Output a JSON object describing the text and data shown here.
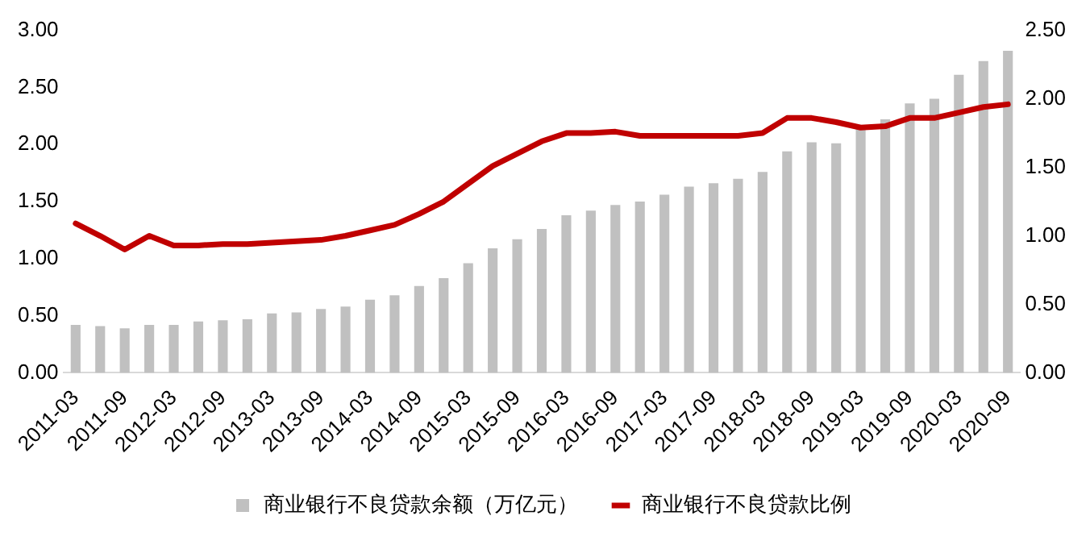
{
  "chart_data": {
    "type": "bar",
    "categories": [
      "2011-03",
      null,
      "2011-09",
      null,
      "2012-03",
      null,
      "2012-09",
      null,
      "2013-03",
      null,
      "2013-09",
      null,
      "2014-03",
      null,
      "2014-09",
      null,
      "2015-03",
      null,
      "2015-09",
      null,
      "2016-03",
      null,
      "2016-09",
      null,
      "2017-03",
      null,
      "2017-09",
      null,
      "2018-03",
      null,
      "2018-09",
      null,
      "2019-03",
      null,
      "2019-09",
      null,
      "2020-03",
      null,
      "2020-09"
    ],
    "series": [
      {
        "name": "商业银行不良贷款余额（万亿元）",
        "color": "#c0c0c0",
        "values": [
          0.42,
          0.41,
          0.39,
          0.42,
          0.42,
          0.45,
          0.46,
          0.47,
          0.52,
          0.53,
          0.56,
          0.58,
          0.64,
          0.68,
          0.76,
          0.83,
          0.96,
          1.09,
          1.17,
          1.26,
          1.38,
          1.42,
          1.47,
          1.5,
          1.56,
          1.63,
          1.66,
          1.7,
          1.76,
          1.94,
          2.02,
          2.01,
          2.14,
          2.22,
          2.36,
          2.4,
          2.61,
          2.73,
          2.82
        ]
      },
      {
        "name": "商业银行不良贷款比例",
        "type": "line",
        "axis": "y2",
        "color": "#c00000",
        "values": [
          1.09,
          1.0,
          0.9,
          1.0,
          0.93,
          0.93,
          0.94,
          0.94,
          0.95,
          0.96,
          0.97,
          1.0,
          1.04,
          1.08,
          1.16,
          1.25,
          1.38,
          1.51,
          1.6,
          1.69,
          1.75,
          1.75,
          1.76,
          1.73,
          1.73,
          1.73,
          1.73,
          1.73,
          1.75,
          1.86,
          1.86,
          1.83,
          1.79,
          1.8,
          1.86,
          1.86,
          1.9,
          1.94,
          1.96
        ]
      }
    ],
    "ylim": [
      0,
      3
    ],
    "yticks": [
      {
        "value": 0,
        "label": "0.00"
      },
      {
        "value": 0.5,
        "label": "0.50"
      },
      {
        "value": 1,
        "label": "1.00"
      },
      {
        "value": 1.5,
        "label": "1.50"
      },
      {
        "value": 2,
        "label": "2.00"
      },
      {
        "value": 2.5,
        "label": "2.50"
      },
      {
        "value": 3,
        "label": "3.00"
      }
    ],
    "y2lim": [
      0,
      2.5
    ],
    "y2ticks": [
      {
        "value": 0,
        "label": "0.00"
      },
      {
        "value": 0.5,
        "label": "0.50"
      },
      {
        "value": 1,
        "label": "1.00"
      },
      {
        "value": 1.5,
        "label": "1.50"
      },
      {
        "value": 2,
        "label": "2.00"
      },
      {
        "value": 2.5,
        "label": "2.50"
      }
    ],
    "grid": false,
    "legend": "bottom",
    "marker": "none",
    "line_style": "solid"
  }
}
